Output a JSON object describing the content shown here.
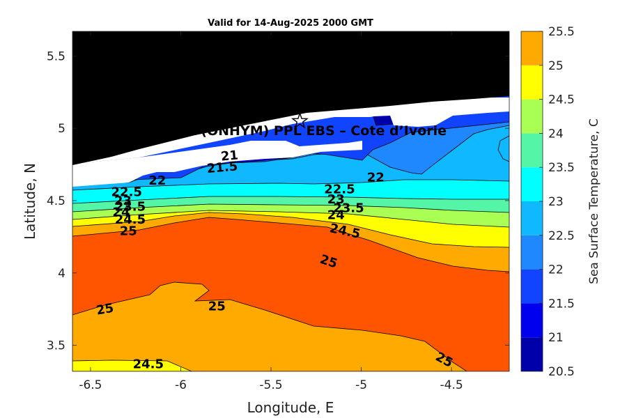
{
  "chart_data": {
    "type": "heatmap",
    "subtype": "filled-contour",
    "title": "Valid for 14-Aug-2025 2000 GMT",
    "xlabel": "Longitude, E",
    "ylabel": "Latitude, N",
    "xlim": [
      -6.6,
      -4.18
    ],
    "ylim": [
      3.32,
      5.67
    ],
    "xticks": [
      -6.5,
      -6,
      -5.5,
      -5,
      -4.5
    ],
    "xtick_labels": [
      "-6.5",
      "-6",
      "-5.5",
      "-5",
      "-4.5"
    ],
    "yticks": [
      3.5,
      4,
      4.5,
      5,
      5.5
    ],
    "ytick_labels": [
      "3.5",
      "4",
      "4.5",
      "5",
      "5.5"
    ],
    "colorbar": {
      "label": "Sea Surface Temperature, C",
      "levels": [
        20.5,
        21,
        21.5,
        22,
        22.5,
        23,
        23.5,
        24,
        24.5,
        25,
        25.5
      ],
      "labels": [
        "20.5",
        "21",
        "21.5",
        "22",
        "22.5",
        "23",
        "23.5",
        "24",
        "24.5",
        "25",
        "25.5"
      ],
      "colors": [
        "#0000aa",
        "#0000ee",
        "#1144ff",
        "#1f88ff",
        "#0fb8ff",
        "#00ffff",
        "#55f5a8",
        "#aaff55",
        "#ffff00",
        "#ffaa00",
        "#ff5500"
      ]
    },
    "land_color": "#000000",
    "site": {
      "label": "A (ONHYM) PPL EBS  – Cote d’Ivorie",
      "lon": -5.34,
      "lat": 5.05,
      "marker": "star"
    },
    "contour_labels": [
      {
        "text": "21",
        "lon": -5.73,
        "lat": 4.81,
        "angle": -5
      },
      {
        "text": "21.5",
        "lon": -5.77,
        "lat": 4.73,
        "angle": -5
      },
      {
        "text": "22",
        "lon": -6.13,
        "lat": 4.64,
        "angle": 0
      },
      {
        "text": "22",
        "lon": -4.92,
        "lat": 4.66,
        "angle": 0
      },
      {
        "text": "22.5",
        "lon": -6.3,
        "lat": 4.56,
        "angle": 0
      },
      {
        "text": "22.5",
        "lon": -5.12,
        "lat": 4.58,
        "angle": 0
      },
      {
        "text": "23",
        "lon": -6.32,
        "lat": 4.5,
        "angle": 0
      },
      {
        "text": "23",
        "lon": -5.14,
        "lat": 4.51,
        "angle": 0
      },
      {
        "text": "23.5",
        "lon": -6.28,
        "lat": 4.46,
        "angle": 0
      },
      {
        "text": "23.5",
        "lon": -5.07,
        "lat": 4.45,
        "angle": 0
      },
      {
        "text": "24",
        "lon": -6.33,
        "lat": 4.42,
        "angle": 0
      },
      {
        "text": "24",
        "lon": -5.14,
        "lat": 4.4,
        "angle": 0
      },
      {
        "text": "24.5",
        "lon": -6.28,
        "lat": 4.37,
        "angle": 0
      },
      {
        "text": "24.5",
        "lon": -5.09,
        "lat": 4.29,
        "angle": 12
      },
      {
        "text": "25",
        "lon": -6.29,
        "lat": 4.29,
        "angle": 0
      },
      {
        "text": "25",
        "lon": -5.18,
        "lat": 4.08,
        "angle": 18
      },
      {
        "text": "25",
        "lon": -6.42,
        "lat": 3.75,
        "angle": -10
      },
      {
        "text": "25",
        "lon": -5.8,
        "lat": 3.77,
        "angle": 0
      },
      {
        "text": "25",
        "lon": -4.54,
        "lat": 3.4,
        "angle": 28
      },
      {
        "text": "24.5",
        "lon": -6.18,
        "lat": 3.37,
        "angle": 0
      }
    ]
  }
}
